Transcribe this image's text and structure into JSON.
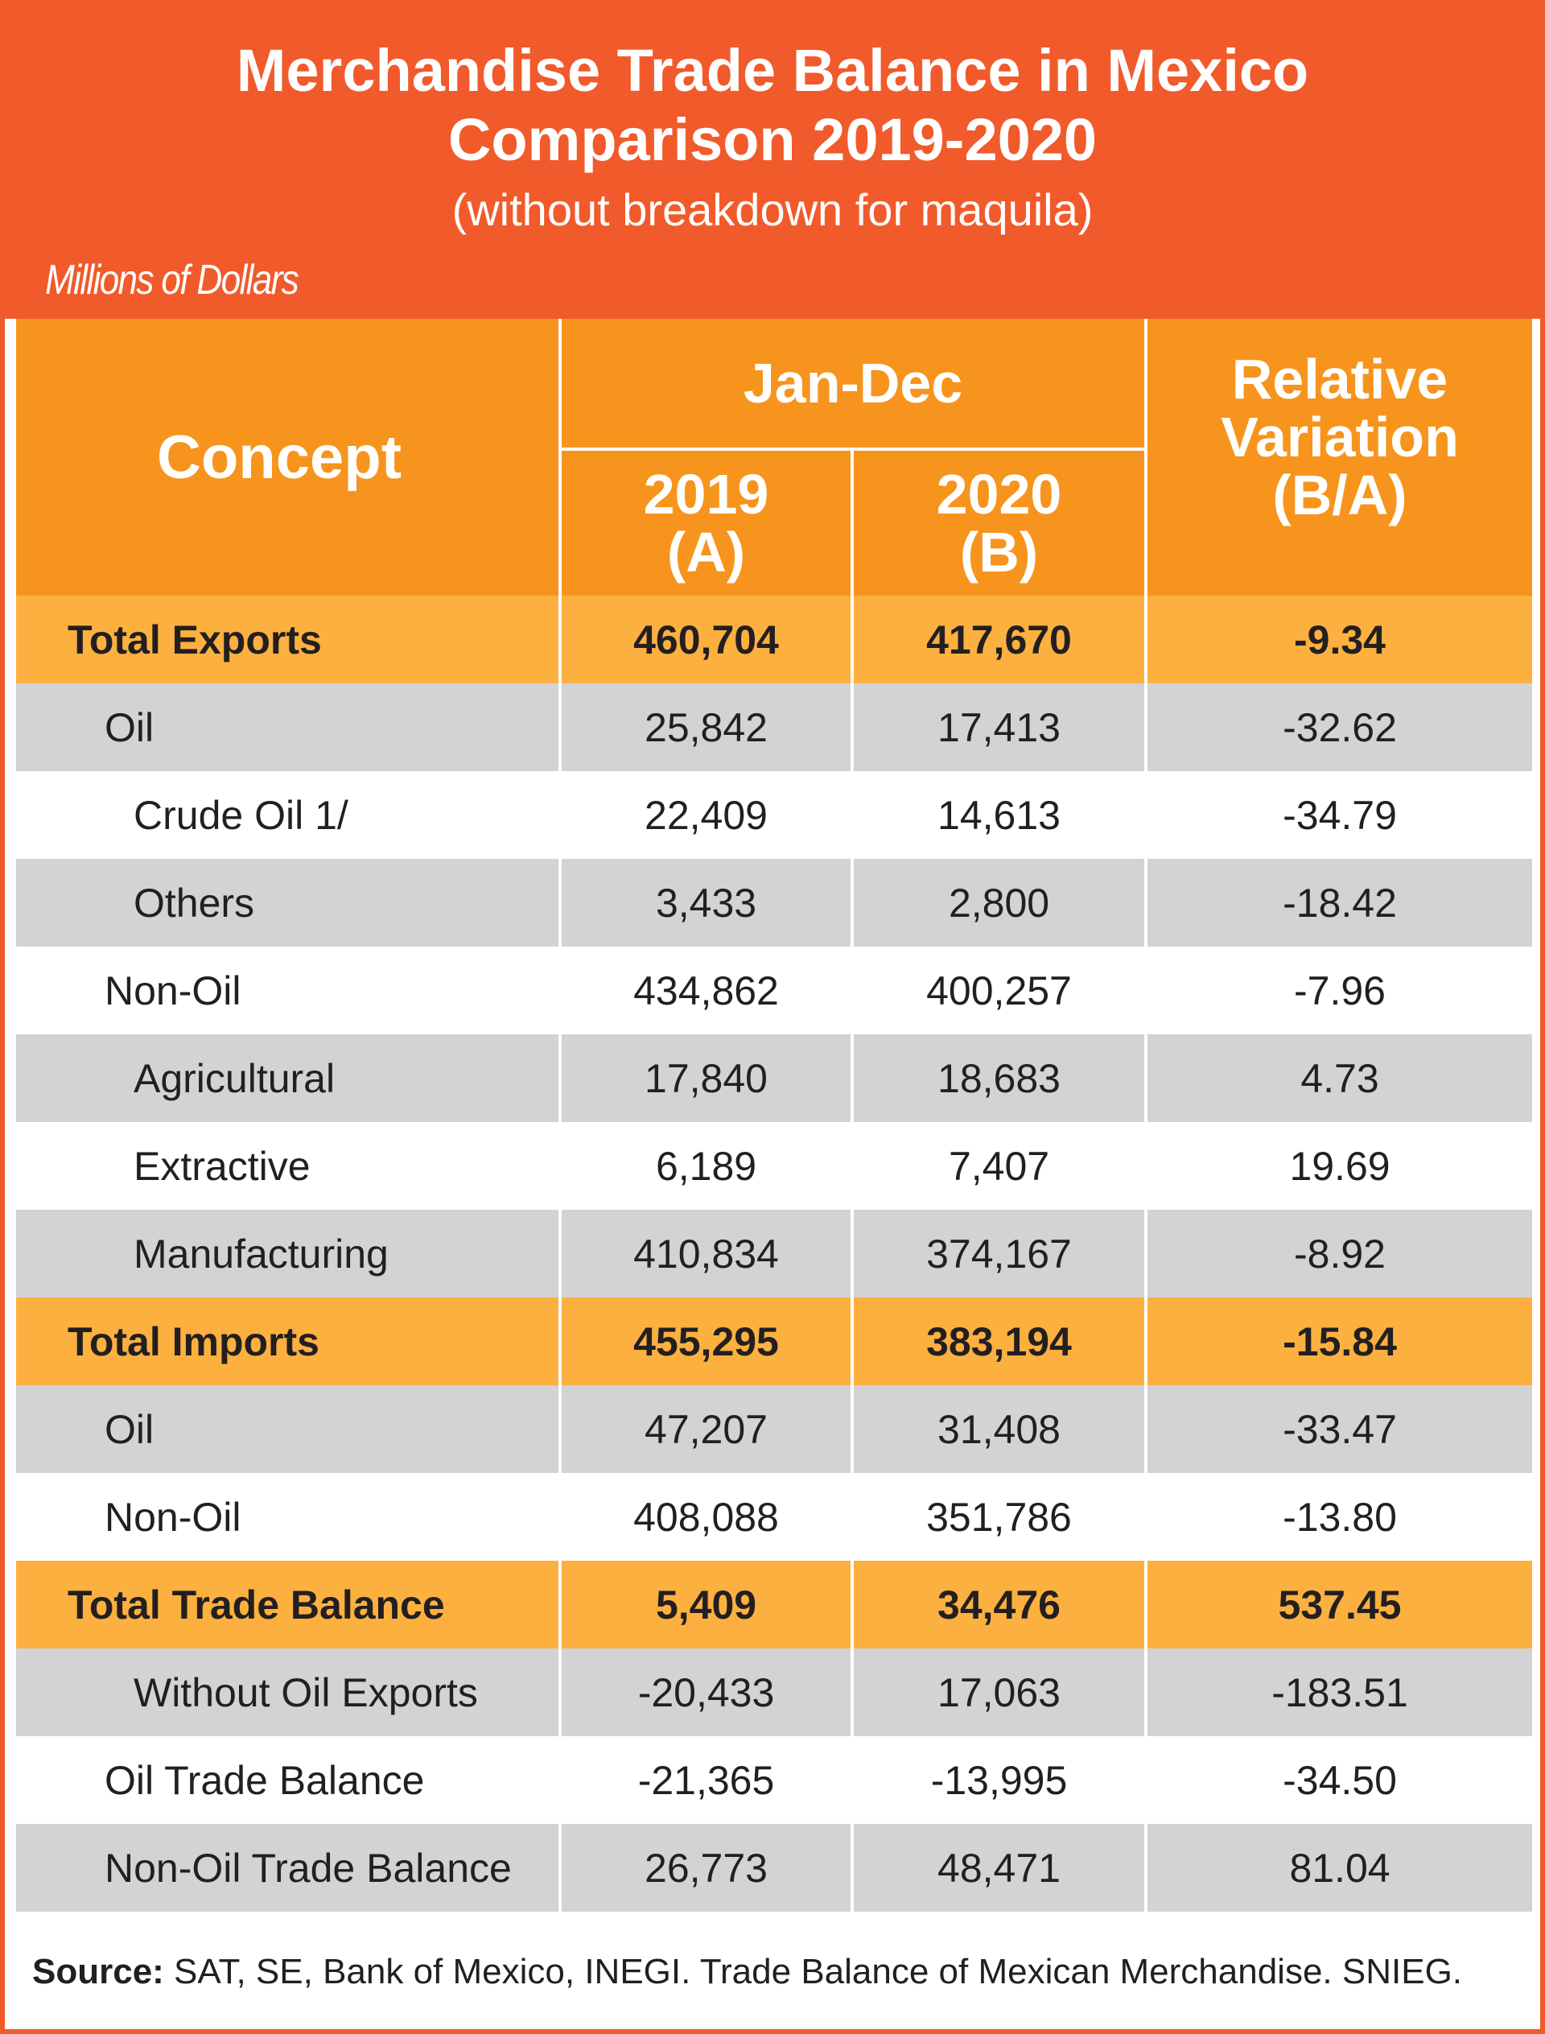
{
  "title_line1": "Merchandise Trade Balance in Mexico",
  "title_line2": "Comparison 2019-2020",
  "subtitle": "(without breakdown for maquila)",
  "units": "Millions of Dollars",
  "header": {
    "concept": "Concept",
    "period": "Jan-Dec",
    "col_a_year": "2019",
    "col_a_tag": "(A)",
    "col_b_year": "2020",
    "col_b_tag": "(B)",
    "rel_line1": "Relative",
    "rel_line2": "Variation",
    "rel_line3": "(B/A)"
  },
  "rows": [
    {
      "label": "Total Exports",
      "a": "460,704",
      "b": "417,670",
      "v": "-9.34",
      "style": "total",
      "level": 0
    },
    {
      "label": "Oil",
      "a": "25,842",
      "b": "17,413",
      "v": "-32.62",
      "style": "gray",
      "level": 1
    },
    {
      "label": "Crude Oil 1/",
      "a": "22,409",
      "b": "14,613",
      "v": "-34.79",
      "style": "white",
      "level": 2
    },
    {
      "label": "Others",
      "a": "3,433",
      "b": "2,800",
      "v": "-18.42",
      "style": "gray",
      "level": 2
    },
    {
      "label": "Non-Oil",
      "a": "434,862",
      "b": "400,257",
      "v": "-7.96",
      "style": "white",
      "level": 1
    },
    {
      "label": "Agricultural",
      "a": "17,840",
      "b": "18,683",
      "v": "4.73",
      "style": "gray",
      "level": 2
    },
    {
      "label": "Extractive",
      "a": "6,189",
      "b": "7,407",
      "v": "19.69",
      "style": "white",
      "level": 2
    },
    {
      "label": "Manufacturing",
      "a": "410,834",
      "b": "374,167",
      "v": "-8.92",
      "style": "gray",
      "level": 2
    },
    {
      "label": "Total Imports",
      "a": "455,295",
      "b": "383,194",
      "v": "-15.84",
      "style": "total",
      "level": 0
    },
    {
      "label": "Oil",
      "a": "47,207",
      "b": "31,408",
      "v": "-33.47",
      "style": "gray",
      "level": 1
    },
    {
      "label": "Non-Oil",
      "a": "408,088",
      "b": "351,786",
      "v": "-13.80",
      "style": "white",
      "level": 1
    },
    {
      "label": "Total Trade Balance",
      "a": "5,409",
      "b": "34,476",
      "v": "537.45",
      "style": "total",
      "level": 0
    },
    {
      "label": "Without Oil Exports",
      "a": "-20,433",
      "b": "17,063",
      "v": "-183.51",
      "style": "gray",
      "level": 2
    },
    {
      "label": "Oil Trade Balance",
      "a": "-21,365",
      "b": "-13,995",
      "v": "-34.50",
      "style": "white",
      "level": 1
    },
    {
      "label": "Non-Oil Trade Balance",
      "a": "26,773",
      "b": "48,471",
      "v": "81.04",
      "style": "gray",
      "level": 1
    }
  ],
  "source_label": "Source:",
  "source_text": " SAT, SE, Bank of Mexico, INEGI. Trade Balance of Mexican Merchandise. SNIEG.",
  "colors": {
    "banner": "#F15A2B",
    "header": "#F7941D",
    "total_row": "#FBB040",
    "gray_row": "#D1D3D4"
  }
}
